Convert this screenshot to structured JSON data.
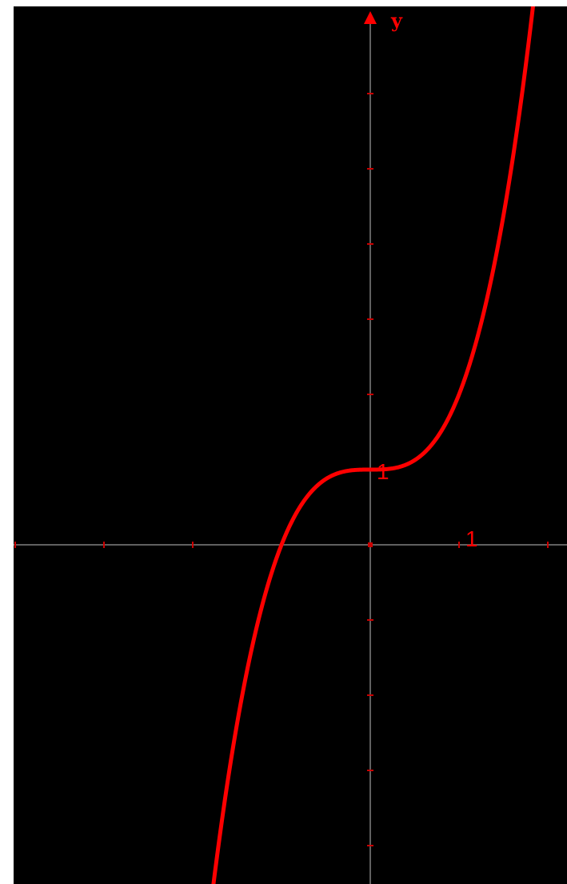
{
  "chart_data": {
    "type": "line",
    "function": "y = x^3 + 1",
    "xlim": [
      -4,
      2.2
    ],
    "ylim": [
      -4.5,
      7.2
    ],
    "xtick_step": 1,
    "ytick_step": 1,
    "axis_labels": {
      "y": "y"
    },
    "tick_labels": [
      {
        "axis": "x",
        "value": 1,
        "text": "1"
      },
      {
        "axis": "y",
        "value": 1,
        "text": "1"
      }
    ],
    "series": [
      {
        "color": "#ff0000",
        "x_range": [
          -1.8,
          1.85
        ]
      }
    ],
    "grid": false,
    "background": "#000000",
    "axis_color": "#808080",
    "tick_color": "#cc0000"
  }
}
